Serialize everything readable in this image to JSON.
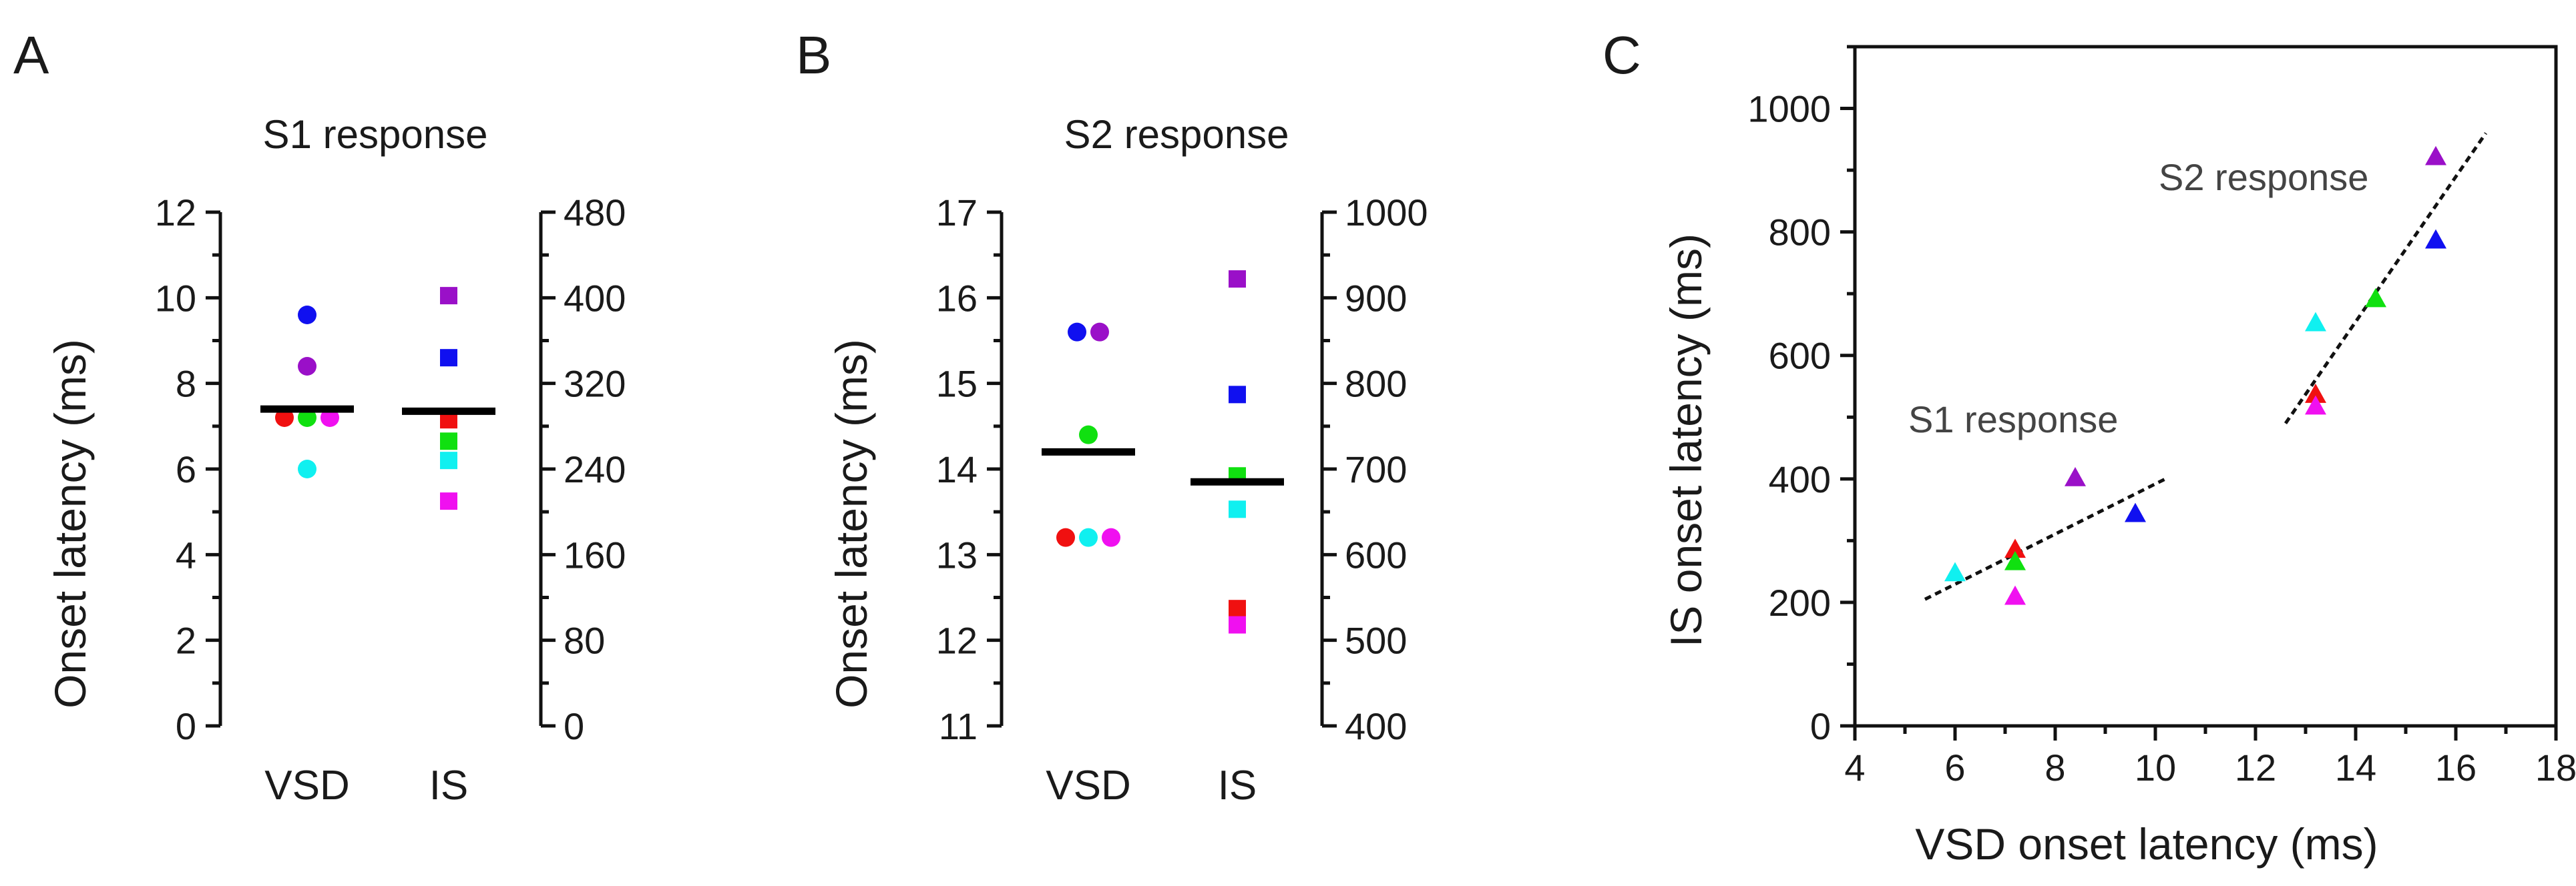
{
  "panels": {
    "A": {
      "letter": "A",
      "title": "S1 response",
      "ylabel": "Onset latency (ms)"
    },
    "B": {
      "letter": "B",
      "title": "S2 response",
      "ylabel": "Onset latency (ms)"
    },
    "C": {
      "letter": "C",
      "xlabel": "VSD onset latency (ms)",
      "ylabel": "IS onset latency (ms)",
      "annot_s1": "S1 response",
      "annot_s2": "S2 response"
    }
  },
  "colors": {
    "blue": "#1010f0",
    "purple": "#9a10c8",
    "green": "#10e010",
    "red": "#f01010",
    "cyan": "#10f0f0",
    "magenta": "#f010f0",
    "mean": "#000000"
  },
  "chart_data": [
    {
      "id": "A",
      "type": "scatter",
      "title": "S1 response",
      "ylabel": "Onset latency (ms)",
      "categories": [
        "VSD",
        "IS"
      ],
      "left_axis": {
        "ylim": [
          0,
          12
        ],
        "ticks": [
          0,
          2,
          4,
          6,
          8,
          10,
          12
        ]
      },
      "right_axis": {
        "ylim": [
          0,
          480
        ],
        "ticks": [
          0,
          80,
          160,
          240,
          320,
          400,
          480
        ]
      },
      "series": [
        {
          "name": "VSD",
          "marker": "circle",
          "axis": "left",
          "points": [
            {
              "color": "blue",
              "value": 9.6
            },
            {
              "color": "purple",
              "value": 8.4
            },
            {
              "color": "red",
              "value": 7.2
            },
            {
              "color": "green",
              "value": 7.2
            },
            {
              "color": "magenta",
              "value": 7.2
            },
            {
              "color": "cyan",
              "value": 6.0
            }
          ],
          "mean": 7.4
        },
        {
          "name": "IS",
          "marker": "square",
          "axis": "right",
          "points": [
            {
              "color": "purple",
              "value": 402
            },
            {
              "color": "blue",
              "value": 344
            },
            {
              "color": "red",
              "value": 286
            },
            {
              "color": "green",
              "value": 266
            },
            {
              "color": "cyan",
              "value": 248
            },
            {
              "color": "magenta",
              "value": 210
            }
          ],
          "mean": 294
        }
      ]
    },
    {
      "id": "B",
      "type": "scatter",
      "title": "S2 response",
      "ylabel": "Onset latency (ms)",
      "categories": [
        "VSD",
        "IS"
      ],
      "left_axis": {
        "ylim": [
          11,
          17
        ],
        "ticks": [
          11,
          12,
          13,
          14,
          15,
          16,
          17
        ]
      },
      "right_axis": {
        "ylim": [
          400,
          1000
        ],
        "ticks": [
          400,
          500,
          600,
          700,
          800,
          900,
          1000
        ]
      },
      "series": [
        {
          "name": "VSD",
          "marker": "circle",
          "axis": "left",
          "points": [
            {
              "color": "blue",
              "value": 15.6
            },
            {
              "color": "purple",
              "value": 15.6
            },
            {
              "color": "green",
              "value": 14.4
            },
            {
              "color": "red",
              "value": 13.2
            },
            {
              "color": "cyan",
              "value": 13.2
            },
            {
              "color": "magenta",
              "value": 13.2
            }
          ],
          "mean": 14.2
        },
        {
          "name": "IS",
          "marker": "square",
          "axis": "right",
          "points": [
            {
              "color": "purple",
              "value": 922
            },
            {
              "color": "blue",
              "value": 787
            },
            {
              "color": "green",
              "value": 692
            },
            {
              "color": "cyan",
              "value": 653
            },
            {
              "color": "red",
              "value": 537
            },
            {
              "color": "magenta",
              "value": 518
            }
          ],
          "mean": 685
        }
      ]
    },
    {
      "id": "C",
      "type": "scatter",
      "xlabel": "VSD onset latency (ms)",
      "ylabel": "IS onset latency (ms)",
      "xlim": [
        4,
        18
      ],
      "ylim": [
        0,
        1100
      ],
      "xticks": [
        4,
        6,
        8,
        10,
        12,
        14,
        16,
        18
      ],
      "yticks": [
        0,
        200,
        400,
        600,
        800,
        1000
      ],
      "marker": "triangle",
      "series": [
        {
          "name": "S1 response",
          "points": [
            {
              "color": "cyan",
              "x": 6.0,
              "y": 248
            },
            {
              "color": "red",
              "x": 7.2,
              "y": 286
            },
            {
              "color": "green",
              "x": 7.2,
              "y": 266
            },
            {
              "color": "magenta",
              "x": 7.2,
              "y": 210
            },
            {
              "color": "purple",
              "x": 8.4,
              "y": 402
            },
            {
              "color": "blue",
              "x": 9.6,
              "y": 344
            }
          ],
          "fit": {
            "x": [
              5.4,
              10.2
            ],
            "y": [
              205,
              400
            ]
          }
        },
        {
          "name": "S2 response",
          "points": [
            {
              "color": "cyan",
              "x": 13.2,
              "y": 653
            },
            {
              "color": "red",
              "x": 13.2,
              "y": 537
            },
            {
              "color": "magenta",
              "x": 13.2,
              "y": 518
            },
            {
              "color": "green",
              "x": 14.4,
              "y": 692
            },
            {
              "color": "blue",
              "x": 15.6,
              "y": 787
            },
            {
              "color": "purple",
              "x": 15.6,
              "y": 922
            }
          ],
          "fit": {
            "x": [
              12.6,
              16.6
            ],
            "y": [
              490,
              960
            ]
          }
        }
      ]
    }
  ]
}
